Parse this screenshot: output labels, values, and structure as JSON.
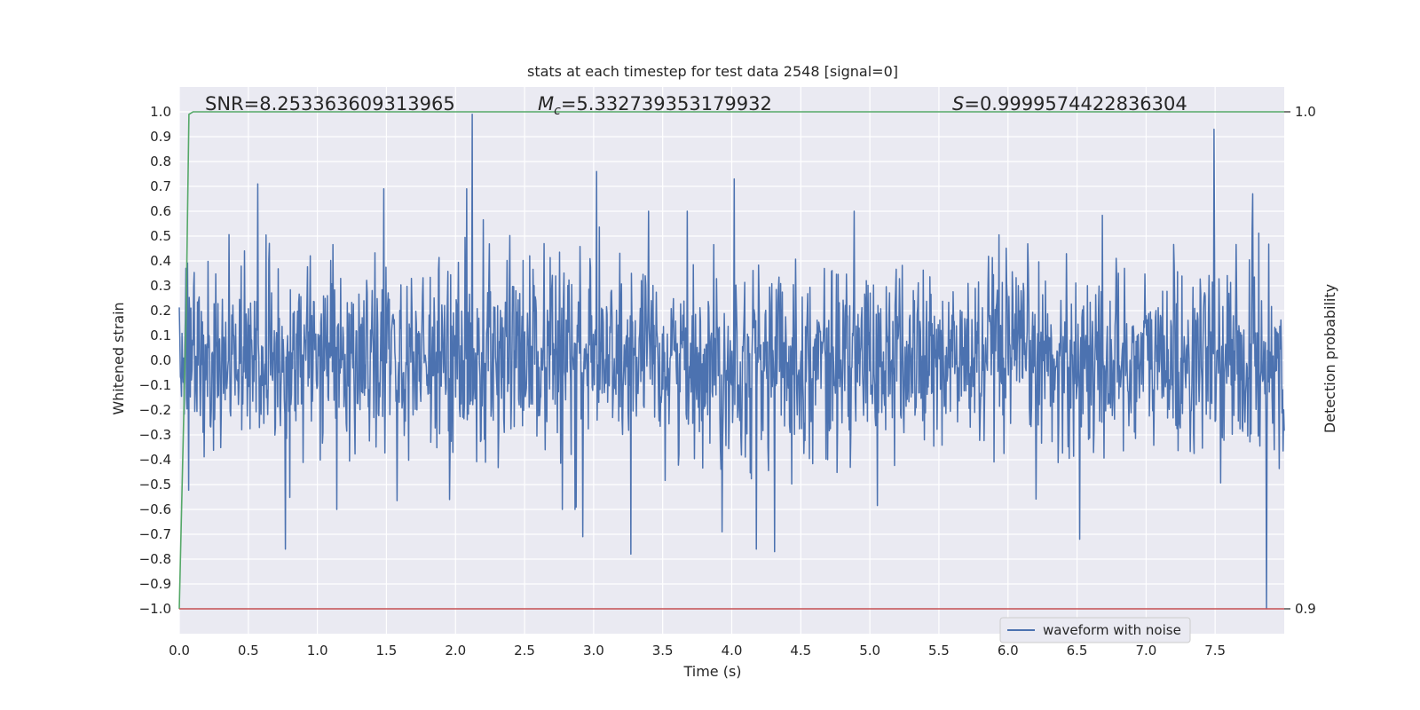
{
  "chart_data": {
    "type": "line",
    "title": "stats at each timestep for test data 2548 [signal=0]",
    "xlabel": "Time (s)",
    "ylabel": "Whitened strain",
    "y2label": "Detection probability",
    "xlim": [
      0,
      8
    ],
    "ylim": [
      -1.1,
      1.1
    ],
    "y2lim": [
      0.9,
      1.0
    ],
    "x_ticks": [
      "0.0",
      "0.5",
      "1.0",
      "1.5",
      "2.0",
      "2.5",
      "3.0",
      "3.5",
      "4.0",
      "4.5",
      "5.0",
      "5.5",
      "6.0",
      "6.5",
      "7.0",
      "7.5"
    ],
    "x_tick_values": [
      0.0,
      0.5,
      1.0,
      1.5,
      2.0,
      2.5,
      3.0,
      3.5,
      4.0,
      4.5,
      5.0,
      5.5,
      6.0,
      6.5,
      7.0,
      7.5
    ],
    "y_ticks": [
      "1.0",
      "0.9",
      "0.8",
      "0.7",
      "0.6",
      "0.5",
      "0.4",
      "0.3",
      "0.2",
      "0.1",
      "0.0",
      "−0.1",
      "−0.2",
      "−0.3",
      "−0.4",
      "−0.5",
      "−0.6",
      "−0.7",
      "−0.8",
      "−0.9",
      "−1.0"
    ],
    "y_tick_values": [
      1.0,
      0.9,
      0.8,
      0.7,
      0.6,
      0.5,
      0.4,
      0.3,
      0.2,
      0.1,
      0.0,
      -0.1,
      -0.2,
      -0.3,
      -0.4,
      -0.5,
      -0.6,
      -0.7,
      -0.8,
      -0.9,
      -1.0
    ],
    "y2_ticks": [
      "1.0",
      "0.9"
    ],
    "y2_tick_values": [
      1.0,
      0.9
    ],
    "annotations": {
      "snr": "SNR=8.253363609313965",
      "mc_symbol": "M",
      "mc_sub": "c",
      "mc_value": "=5.332739353179932",
      "s_symbol": "S",
      "s_value": "=0.9999574422836304"
    },
    "legend": {
      "placement": "lower-right",
      "entries": [
        "waveform with noise"
      ]
    },
    "grid": true,
    "series": [
      {
        "name": "waveform with noise",
        "kind": "noise",
        "x_range": [
          0.0,
          8.0
        ],
        "sample_count": 2000,
        "typical_amplitude": 0.3,
        "spikes": [
          {
            "x": 2.12,
            "y": 0.99
          },
          {
            "x": 2.08,
            "y": 0.69
          },
          {
            "x": 0.57,
            "y": 0.71
          },
          {
            "x": 1.48,
            "y": 0.69
          },
          {
            "x": 3.02,
            "y": 0.76
          },
          {
            "x": 4.02,
            "y": 0.73
          },
          {
            "x": 7.49,
            "y": 0.93
          },
          {
            "x": 7.87,
            "y": -1.0
          },
          {
            "x": 7.77,
            "y": -0.84
          },
          {
            "x": 0.77,
            "y": -0.76
          },
          {
            "x": 3.27,
            "y": -0.78
          },
          {
            "x": 4.18,
            "y": -0.76
          },
          {
            "x": 4.31,
            "y": -0.77
          },
          {
            "x": 6.52,
            "y": -0.72
          },
          {
            "x": 2.92,
            "y": -0.71
          },
          {
            "x": 3.93,
            "y": -0.69
          },
          {
            "x": 7.77,
            "y": 0.67
          }
        ]
      },
      {
        "name": "",
        "kind": "probability",
        "axis": "y2",
        "x": [
          0.0,
          0.05,
          0.07,
          0.1,
          8.0
        ],
        "y": [
          0.9,
          0.96,
          0.9995,
          1.0,
          1.0
        ]
      },
      {
        "name": "",
        "kind": "constant",
        "axis": "y2",
        "x": [
          0.0,
          8.0
        ],
        "y": [
          0.9,
          0.9
        ]
      }
    ],
    "colors": {
      "waveform": "#4c72b0",
      "probability": "#55a868",
      "threshold": "#c44e52",
      "plot_bg": "#eaeaf2",
      "grid": "#ffffff",
      "text": "#262626"
    }
  }
}
